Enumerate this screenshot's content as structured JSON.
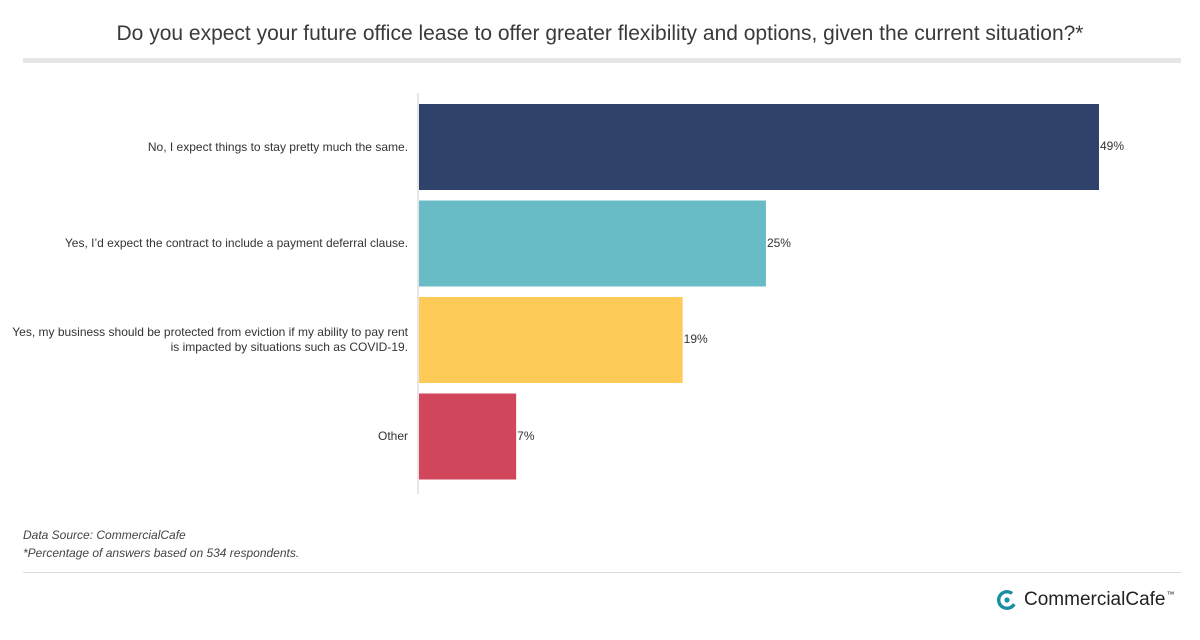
{
  "chart_data": {
    "type": "bar",
    "orientation": "horizontal",
    "title": "Do you expect your future office lease to offer greater flexibility and options, given the current situation?*",
    "categories": [
      "No, I expect things to stay pretty much the same.",
      "Yes, I’d expect the contract to include a payment deferral clause.",
      "Yes, my business should be protected from eviction if my ability to pay rent is impacted by situations such as COVID-19.",
      "Other"
    ],
    "values": [
      49,
      25,
      19,
      7
    ],
    "value_labels": [
      "49%",
      "25%",
      "19%",
      "7%"
    ],
    "colors": [
      "#2f4269",
      "#69bcc6",
      "#fecb59",
      "#d1465b"
    ],
    "xlim": [
      0,
      52
    ],
    "grid": false,
    "legend": "none"
  },
  "footer": {
    "source": "Data Source: CommercialCafe",
    "note": "*Percentage of answers based on 534 respondents."
  },
  "brand": {
    "name": "CommercialCafe",
    "tm": "™",
    "accent": "#1a8fa3"
  }
}
